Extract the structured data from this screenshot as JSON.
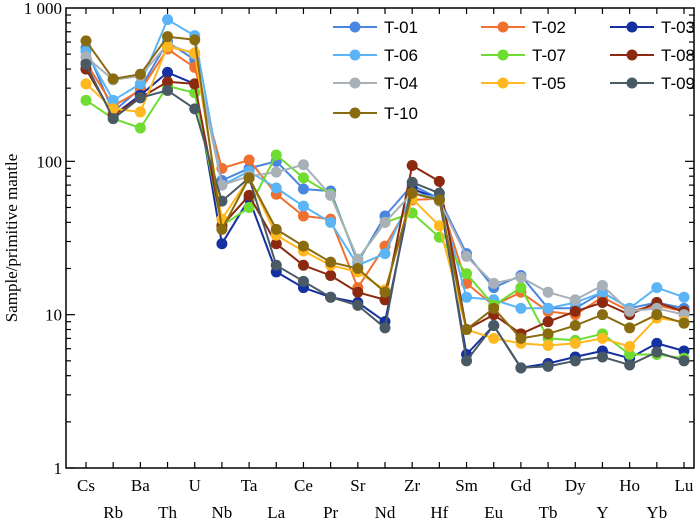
{
  "chart_data": {
    "type": "line",
    "ylabel": "Sample/primitive mantle",
    "yscale": "log",
    "ylim": [
      1,
      1000
    ],
    "y_ticks": [
      "1",
      "10",
      "100",
      "1 000"
    ],
    "categories": [
      "Cs",
      "Rb",
      "Ba",
      "Th",
      "U",
      "Nb",
      "Ta",
      "La",
      "Ce",
      "Pr",
      "Sr",
      "Nd",
      "Zr",
      "Hf",
      "Sm",
      "Eu",
      "Gd",
      "Tb",
      "Dy",
      "Y",
      "Ho",
      "Yb",
      "Lu"
    ],
    "legend_position": "top-right",
    "series": [
      {
        "name": "T-01",
        "color": "#4a86e0",
        "values": [
          550,
          210,
          300,
          600,
          460,
          75,
          90,
          100,
          66,
          64,
          22,
          44,
          70,
          57,
          25,
          15,
          18,
          11,
          11,
          14,
          11,
          12,
          11
        ]
      },
      {
        "name": "T-02",
        "color": "#f07030",
        "values": [
          440,
          230,
          290,
          540,
          410,
          90,
          102,
          61,
          44,
          42,
          15,
          28,
          56,
          57,
          16,
          11.5,
          14,
          10.5,
          10,
          13,
          10.5,
          11.5,
          10.5
        ]
      },
      {
        "name": "T-03",
        "color": "#1530a0",
        "values": [
          400,
          200,
          270,
          380,
          320,
          29,
          57,
          19,
          15,
          13,
          12,
          9,
          66,
          57,
          5.5,
          8.5,
          4.5,
          4.8,
          5.3,
          5.8,
          5.2,
          6.5,
          5.8
        ]
      },
      {
        "name": "T-06",
        "color": "#5ab4f5",
        "values": [
          520,
          250,
          320,
          840,
          660,
          70,
          86,
          67,
          51,
          40,
          21,
          25,
          62,
          58,
          13,
          12.5,
          11,
          11,
          12,
          14,
          11,
          15,
          13
        ]
      },
      {
        "name": "T-07",
        "color": "#6edc30",
        "values": [
          250,
          190,
          165,
          310,
          280,
          38,
          50,
          110,
          78,
          61,
          23,
          40,
          46,
          32,
          18.5,
          11.5,
          15,
          7,
          6.8,
          7.5,
          5.5,
          5.5,
          5.2
        ]
      },
      {
        "name": "T-08",
        "color": "#8b2a10",
        "values": [
          400,
          200,
          260,
          330,
          320,
          38,
          60,
          29,
          21,
          18,
          14,
          12.5,
          94,
          74,
          8,
          10,
          7.5,
          9,
          10.5,
          12,
          10,
          12,
          10.5
        ]
      },
      {
        "name": "T-04",
        "color": "#a8b0b8",
        "values": [
          480,
          340,
          360,
          580,
          500,
          70,
          80,
          85,
          95,
          60,
          23,
          40,
          62,
          55,
          24,
          16,
          17.5,
          14,
          12.5,
          15.5,
          10.5,
          11,
          10
        ]
      },
      {
        "name": "T-05",
        "color": "#ffb820",
        "values": [
          320,
          220,
          210,
          560,
          510,
          42,
          78,
          33,
          26,
          21,
          19,
          14.5,
          57,
          38,
          8,
          7,
          6.5,
          6.3,
          6.5,
          7,
          6.2,
          9.5,
          9
        ]
      },
      {
        "name": "T-09",
        "color": "#4a5a64",
        "values": [
          430,
          190,
          260,
          290,
          220,
          55,
          78,
          21,
          16.5,
          13,
          11.5,
          8.2,
          73,
          62,
          5,
          8.5,
          4.5,
          4.6,
          5,
          5.3,
          4.7,
          5.7,
          5
        ]
      },
      {
        "name": "T-10",
        "color": "#8a6c10",
        "values": [
          610,
          345,
          370,
          650,
          620,
          36,
          78,
          36,
          28,
          22,
          20,
          14,
          62,
          56,
          8,
          11,
          7,
          7.5,
          8.5,
          10,
          8.2,
          10,
          8.8
        ]
      }
    ]
  }
}
